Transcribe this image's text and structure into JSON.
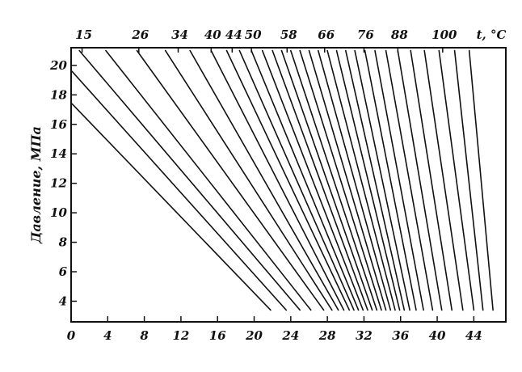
{
  "chart_data": {
    "type": "line",
    "ylabel": "Давление, МПа",
    "top_axis_title": "t, °C",
    "xlim": [
      0,
      47.5
    ],
    "ylim": [
      2.6,
      21.2
    ],
    "x_ticks": [
      0,
      4,
      8,
      12,
      16,
      20,
      24,
      28,
      32,
      36,
      40,
      44
    ],
    "y_ticks": [
      4,
      6,
      8,
      10,
      12,
      14,
      16,
      18,
      20
    ],
    "top_ticks": [
      {
        "label": "15",
        "x": 1.2
      },
      {
        "label": "26",
        "x": 7.4
      },
      {
        "label": "34",
        "x": 11.7
      },
      {
        "label": "40",
        "x": 15.3
      },
      {
        "label": "44",
        "x": 17.6
      },
      {
        "label": "50",
        "x": 19.7
      },
      {
        "label": "58",
        "x": 23.6
      },
      {
        "label": "66",
        "x": 27.7
      },
      {
        "label": "76",
        "x": 32.0
      },
      {
        "label": "88",
        "x": 35.7
      },
      {
        "label": "100",
        "x": 40.6
      }
    ],
    "series": [
      {
        "values": [
          [
            0.1,
            17.4
          ],
          [
            21.8,
            3.4
          ]
        ]
      },
      {
        "values": [
          [
            0.1,
            19.6
          ],
          [
            23.5,
            3.4
          ]
        ]
      },
      {
        "values": [
          [
            0.9,
            21.0
          ],
          [
            25.0,
            3.4
          ]
        ]
      },
      {
        "values": [
          [
            3.8,
            21.0
          ],
          [
            26.2,
            3.4
          ]
        ]
      },
      {
        "values": [
          [
            7.2,
            21.0
          ],
          [
            27.6,
            3.4
          ]
        ]
      },
      {
        "values": [
          [
            10.3,
            21.0
          ],
          [
            28.5,
            3.4
          ]
        ]
      },
      {
        "values": [
          [
            13.0,
            21.0
          ],
          [
            29.2,
            3.4
          ]
        ]
      },
      {
        "values": [
          [
            15.3,
            21.0
          ],
          [
            29.8,
            3.4
          ]
        ]
      },
      {
        "values": [
          [
            17.0,
            21.0
          ],
          [
            30.4,
            3.4
          ]
        ]
      },
      {
        "values": [
          [
            18.4,
            21.0
          ],
          [
            30.9,
            3.4
          ]
        ]
      },
      {
        "values": [
          [
            19.7,
            21.0
          ],
          [
            31.4,
            3.4
          ]
        ]
      },
      {
        "values": [
          [
            20.9,
            21.0
          ],
          [
            31.9,
            3.4
          ]
        ]
      },
      {
        "values": [
          [
            22.0,
            21.0
          ],
          [
            32.4,
            3.4
          ]
        ]
      },
      {
        "values": [
          [
            23.0,
            21.0
          ],
          [
            32.9,
            3.4
          ]
        ]
      },
      {
        "values": [
          [
            24.0,
            21.0
          ],
          [
            33.4,
            3.4
          ]
        ]
      },
      {
        "values": [
          [
            25.0,
            21.0
          ],
          [
            33.9,
            3.4
          ]
        ]
      },
      {
        "values": [
          [
            26.0,
            21.0
          ],
          [
            34.4,
            3.4
          ]
        ]
      },
      {
        "values": [
          [
            27.0,
            21.0
          ],
          [
            34.9,
            3.4
          ]
        ]
      },
      {
        "values": [
          [
            28.0,
            21.0
          ],
          [
            35.4,
            3.4
          ]
        ]
      },
      {
        "values": [
          [
            29.0,
            21.0
          ],
          [
            35.9,
            3.4
          ]
        ]
      },
      {
        "values": [
          [
            30.0,
            21.0
          ],
          [
            36.4,
            3.4
          ]
        ]
      },
      {
        "values": [
          [
            31.0,
            21.0
          ],
          [
            37.0,
            3.4
          ]
        ]
      },
      {
        "values": [
          [
            32.1,
            21.0
          ],
          [
            37.7,
            3.4
          ]
        ]
      },
      {
        "values": [
          [
            33.2,
            21.0
          ],
          [
            38.5,
            3.4
          ]
        ]
      },
      {
        "values": [
          [
            34.4,
            21.0
          ],
          [
            39.5,
            3.4
          ]
        ]
      },
      {
        "values": [
          [
            35.7,
            21.0
          ],
          [
            40.5,
            3.4
          ]
        ]
      },
      {
        "values": [
          [
            37.1,
            21.0
          ],
          [
            41.6,
            3.4
          ]
        ]
      },
      {
        "values": [
          [
            38.6,
            21.0
          ],
          [
            42.8,
            3.4
          ]
        ]
      },
      {
        "values": [
          [
            40.2,
            21.0
          ],
          [
            44.0,
            3.4
          ]
        ]
      },
      {
        "values": [
          [
            41.9,
            21.0
          ],
          [
            45.0,
            3.4
          ]
        ]
      },
      {
        "values": [
          [
            43.5,
            21.0
          ],
          [
            46.1,
            3.4
          ]
        ]
      }
    ]
  }
}
